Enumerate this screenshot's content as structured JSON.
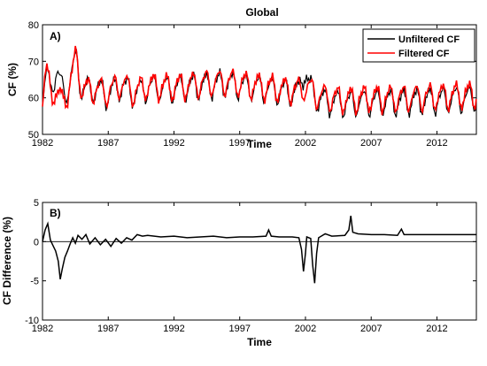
{
  "figure": {
    "title": "Global"
  },
  "chart_data": [
    {
      "type": "line",
      "panel_label": "A)",
      "xlabel": "Time",
      "ylabel": "CF (%)",
      "xlim": [
        1982,
        2015
      ],
      "ylim": [
        50,
        80
      ],
      "xticks": [
        1982,
        1987,
        1992,
        1997,
        2002,
        2007,
        2012
      ],
      "yticks": [
        50,
        60,
        70,
        80
      ],
      "grid": false,
      "legend_position": "top-right",
      "generation": {
        "step_years": 0.0833,
        "start": 1982.0,
        "end": 2015.0
      },
      "series": [
        {
          "name": "Unfiltered CF",
          "color": "#000000",
          "description_points": [
            [
              1982.0,
              59.5
            ],
            [
              1982.3,
              66.5
            ],
            [
              1982.6,
              62.0
            ],
            [
              1983.0,
              67.5
            ],
            [
              1983.3,
              65.0
            ],
            [
              1983.6,
              61.0
            ],
            [
              1984.0,
              63.5
            ],
            [
              1984.6,
              71.0
            ],
            [
              1985.0,
              62.0
            ],
            [
              1986.0,
              62.5
            ],
            [
              1987.0,
              61.0
            ],
            [
              1988.0,
              63.5
            ],
            [
              1989.0,
              61.0
            ],
            [
              1990.0,
              63.0
            ],
            [
              1992.0,
              62.5
            ],
            [
              1994.0,
              63.5
            ],
            [
              1996.0,
              64.0
            ],
            [
              1998.0,
              63.0
            ],
            [
              2000.0,
              62.0
            ],
            [
              2001.5,
              61.5
            ],
            [
              2001.9,
              68.0
            ],
            [
              2002.3,
              63.0
            ],
            [
              2003.0,
              59.5
            ],
            [
              2005.0,
              58.5
            ],
            [
              2007.0,
              59.0
            ],
            [
              2009.0,
              59.0
            ],
            [
              2012.0,
              59.5
            ],
            [
              2015.0,
              60.0
            ]
          ]
        },
        {
          "name": "Filtered CF",
          "color": "#ff0000",
          "description_points": [
            [
              1982.0,
              59.5
            ],
            [
              1982.3,
              68.0
            ],
            [
              1982.6,
              61.0
            ],
            [
              1983.0,
              62.5
            ],
            [
              1983.3,
              60.0
            ],
            [
              1983.6,
              58.5
            ],
            [
              1984.0,
              63.0
            ],
            [
              1984.6,
              71.5
            ],
            [
              1985.0,
              62.0
            ],
            [
              1986.0,
              62.5
            ],
            [
              1987.0,
              61.5
            ],
            [
              1988.0,
              64.0
            ],
            [
              1989.0,
              61.5
            ],
            [
              1990.0,
              63.5
            ],
            [
              1992.0,
              63.0
            ],
            [
              1994.0,
              64.0
            ],
            [
              1996.0,
              64.5
            ],
            [
              1998.0,
              63.5
            ],
            [
              2000.0,
              62.5
            ],
            [
              2001.5,
              62.0
            ],
            [
              2001.9,
              63.0
            ],
            [
              2002.3,
              62.5
            ],
            [
              2003.0,
              60.5
            ],
            [
              2005.0,
              59.5
            ],
            [
              2007.0,
              60.0
            ],
            [
              2009.0,
              60.0
            ],
            [
              2012.0,
              60.5
            ],
            [
              2015.0,
              61.0
            ]
          ]
        }
      ],
      "seasonal_amplitude": 3.2
    },
    {
      "type": "line",
      "panel_label": "B)",
      "xlabel": "Time",
      "ylabel": "CF Difference (%)",
      "xlim": [
        1982,
        2015
      ],
      "ylim": [
        -10,
        5
      ],
      "xticks": [
        1982,
        1987,
        1992,
        1997,
        2002,
        2007,
        2012
      ],
      "yticks": [
        -10,
        -5,
        0,
        5
      ],
      "grid": false,
      "zero_line": true,
      "series": [
        {
          "name": "",
          "color": "#000000",
          "points": [
            [
              1982.0,
              0.0
            ],
            [
              1982.2,
              1.5
            ],
            [
              1982.4,
              2.3
            ],
            [
              1982.6,
              0.2
            ],
            [
              1982.8,
              -0.5
            ],
            [
              1983.0,
              -1.2
            ],
            [
              1983.2,
              -2.5
            ],
            [
              1983.35,
              -4.8
            ],
            [
              1983.5,
              -3.5
            ],
            [
              1983.7,
              -2.0
            ],
            [
              1983.9,
              -1.2
            ],
            [
              1984.1,
              -0.3
            ],
            [
              1984.3,
              0.5
            ],
            [
              1984.5,
              -0.2
            ],
            [
              1984.7,
              0.8
            ],
            [
              1985.0,
              0.3
            ],
            [
              1985.3,
              0.9
            ],
            [
              1985.6,
              -0.3
            ],
            [
              1986.0,
              0.5
            ],
            [
              1986.4,
              -0.4
            ],
            [
              1986.8,
              0.3
            ],
            [
              1987.2,
              -0.6
            ],
            [
              1987.6,
              0.4
            ],
            [
              1988.0,
              -0.2
            ],
            [
              1988.4,
              0.5
            ],
            [
              1988.8,
              0.2
            ],
            [
              1989.2,
              0.9
            ],
            [
              1989.6,
              0.7
            ],
            [
              1990.0,
              0.8
            ],
            [
              1991.0,
              0.6
            ],
            [
              1992.0,
              0.7
            ],
            [
              1993.0,
              0.5
            ],
            [
              1994.0,
              0.6
            ],
            [
              1995.0,
              0.7
            ],
            [
              1996.0,
              0.5
            ],
            [
              1997.0,
              0.6
            ],
            [
              1998.0,
              0.6
            ],
            [
              1999.0,
              0.7
            ],
            [
              1999.2,
              1.5
            ],
            [
              1999.4,
              0.7
            ],
            [
              2000.0,
              0.6
            ],
            [
              2001.0,
              0.6
            ],
            [
              2001.5,
              0.5
            ],
            [
              2001.7,
              -1.0
            ],
            [
              2001.85,
              -3.8
            ],
            [
              2002.0,
              -1.5
            ],
            [
              2002.1,
              0.6
            ],
            [
              2002.4,
              0.4
            ],
            [
              2002.55,
              -3.0
            ],
            [
              2002.7,
              -5.3
            ],
            [
              2002.85,
              -1.5
            ],
            [
              2003.0,
              0.5
            ],
            [
              2003.5,
              1.0
            ],
            [
              2004.0,
              0.7
            ],
            [
              2005.0,
              0.8
            ],
            [
              2005.3,
              1.5
            ],
            [
              2005.45,
              3.3
            ],
            [
              2005.6,
              1.2
            ],
            [
              2006.0,
              1.0
            ],
            [
              2007.0,
              0.9
            ],
            [
              2008.0,
              0.9
            ],
            [
              2009.0,
              0.8
            ],
            [
              2009.3,
              1.6
            ],
            [
              2009.5,
              0.9
            ],
            [
              2010.0,
              0.9
            ],
            [
              2011.0,
              0.9
            ],
            [
              2012.0,
              0.9
            ],
            [
              2013.0,
              0.9
            ],
            [
              2014.0,
              0.9
            ],
            [
              2015.0,
              0.9
            ]
          ]
        }
      ]
    }
  ]
}
